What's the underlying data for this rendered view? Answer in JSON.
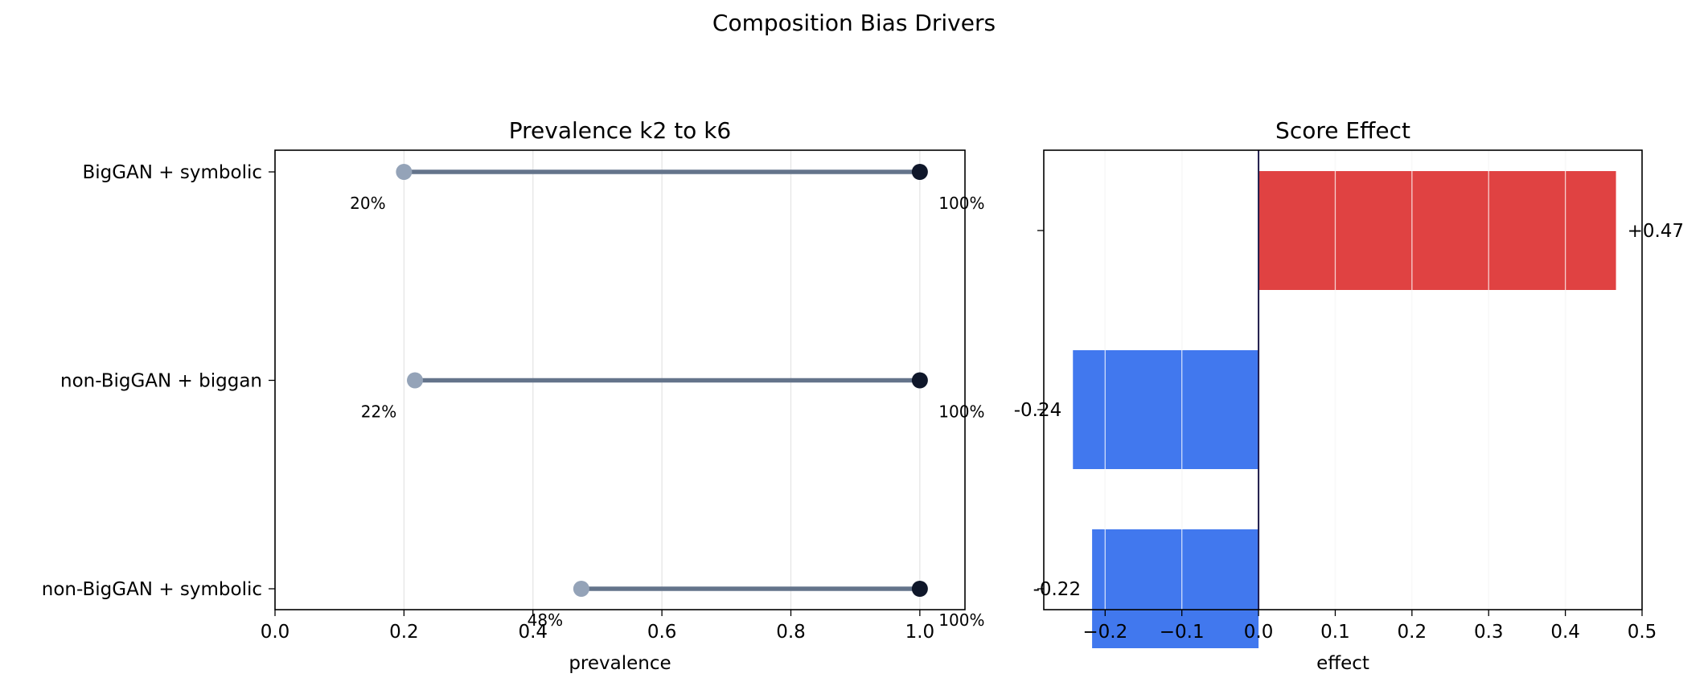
{
  "figure": {
    "suptitle": "Composition Bias Drivers"
  },
  "chart_data": [
    {
      "type": "dumbbell",
      "title": "Prevalence k2 to k6",
      "xlabel": "prevalence",
      "xlim": [
        0.0,
        1.07
      ],
      "xticks": [
        0.0,
        0.2,
        0.4,
        0.6,
        0.8,
        1.0
      ],
      "xtick_labels": [
        "0.0",
        "0.2",
        "0.4",
        "0.6",
        "0.8",
        "1.0"
      ],
      "grid": "vertical",
      "categories": [
        "BigGAN + symbolic",
        "non-BigGAN + biggan",
        "non-BigGAN + symbolic"
      ],
      "start": [
        0.2,
        0.217,
        0.475
      ],
      "end": [
        1.0,
        1.0,
        1.0
      ],
      "start_labels": [
        "20%",
        "22%",
        "48%"
      ],
      "end_labels": [
        "100%",
        "100%",
        "100%"
      ],
      "colors": {
        "start": "#94a3b8",
        "end": "#0f172a",
        "line": "#64748b"
      }
    },
    {
      "type": "barh",
      "title": "Score Effect",
      "xlabel": "effect",
      "xlim": [
        -0.28,
        0.5
      ],
      "xticks": [
        -0.2,
        -0.1,
        0.0,
        0.1,
        0.2,
        0.3,
        0.4,
        0.5
      ],
      "xtick_labels": [
        "−0.2",
        "−0.1",
        "0.0",
        "0.1",
        "0.2",
        "0.3",
        "0.4",
        "0.5"
      ],
      "grid": "vertical",
      "categories": [
        "",
        "",
        ""
      ],
      "values": [
        0.466,
        -0.242,
        -0.217
      ],
      "value_labels": [
        "+0.47",
        "-0.24",
        "-0.22"
      ],
      "colors": {
        "positive": "#e04242",
        "negative": "#4178ee",
        "zero_line": "#1e1b4b"
      }
    }
  ]
}
